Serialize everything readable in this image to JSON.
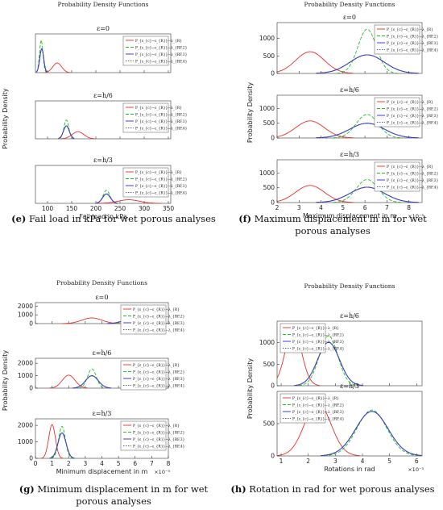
{
  "colors": {
    "red": "#e8302a",
    "green": "#1fc21f",
    "blue": "#2a2ae0",
    "gray": "#5a6275",
    "axis": "#333333"
  },
  "legend_labels": [
    "P_{ε_{c}−ε_{R}}−λ_{R}",
    "P_{ε_{c}−ε_{R}}−λ_{RF,2}",
    "P_{ε_{c}−ε_{R}}−λ_{RF,3}",
    "P_{ε_{c}−ε_{R}}−λ_{RF,4}"
  ],
  "chart_data": [
    {
      "id": "e",
      "type": "line",
      "title": "Probability Density Functions",
      "xlabel": "Fail load in kPa",
      "ylabel": "Probability Density",
      "caption_letter": "(e)",
      "caption_text": "Fail load in kPa for wet porous analyses",
      "x_ticks": [
        "100",
        "150",
        "200",
        "250",
        "300",
        "350"
      ],
      "xlim": [
        75,
        355
      ],
      "x_exponent": "",
      "panels": [
        {
          "label": "ε=0",
          "ylim": [
            0,
            0.16
          ],
          "y_ticks": [],
          "series": [
            {
              "name": "red",
              "mu": 120,
              "sigma": 9,
              "peak": 0.04
            },
            {
              "name": "green",
              "mu": 87,
              "sigma": 3.5,
              "peak": 0.135
            },
            {
              "name": "blue",
              "mu": 88,
              "sigma": 4,
              "peak": 0.1
            },
            {
              "name": "gray",
              "mu": 88,
              "sigma": 4,
              "peak": 0.1
            }
          ]
        },
        {
          "label": "ε=h/6",
          "ylim": [
            0,
            0.16
          ],
          "y_ticks": [],
          "series": [
            {
              "name": "red",
              "mu": 163,
              "sigma": 12,
              "peak": 0.03
            },
            {
              "name": "green",
              "mu": 139,
              "sigma": 5,
              "peak": 0.08
            },
            {
              "name": "blue",
              "mu": 139,
              "sigma": 6,
              "peak": 0.055
            },
            {
              "name": "gray",
              "mu": 139,
              "sigma": 6,
              "peak": 0.055
            }
          ]
        },
        {
          "label": "ε=h/3",
          "ylim": [
            0,
            0.16
          ],
          "y_ticks": [],
          "series": [
            {
              "name": "red",
              "mu": 268,
              "sigma": 22,
              "peak": 0.015
            },
            {
              "name": "green",
              "mu": 222,
              "sigma": 7,
              "peak": 0.055
            },
            {
              "name": "blue",
              "mu": 222,
              "sigma": 8,
              "peak": 0.04
            },
            {
              "name": "gray",
              "mu": 222,
              "sigma": 8,
              "peak": 0.04
            }
          ]
        }
      ]
    },
    {
      "id": "f",
      "type": "line",
      "title": "Probability Density Functions",
      "xlabel": "Maximum displacement in m",
      "ylabel": "Probability Density",
      "caption_letter": "(f)",
      "caption_text": "Maximum displacement in m for wet porous analyses",
      "x_ticks": [
        "2",
        "3",
        "4",
        "5",
        "6",
        "7",
        "8"
      ],
      "xlim": [
        2,
        8.6
      ],
      "x_exponent": "×10⁻³",
      "panels": [
        {
          "label": "ε=0",
          "ylim": [
            0,
            1450
          ],
          "y_ticks": [
            "0",
            "500",
            "1000"
          ],
          "series": [
            {
              "name": "red",
              "mu": 3.5,
              "sigma": 0.65,
              "peak": 620
            },
            {
              "name": "green",
              "mu": 6.1,
              "sigma": 0.42,
              "peak": 1260
            },
            {
              "name": "blue",
              "mu": 6.1,
              "sigma": 0.78,
              "peak": 530
            },
            {
              "name": "gray",
              "mu": 6.1,
              "sigma": 0.78,
              "peak": 530
            }
          ]
        },
        {
          "label": "ε=h/6",
          "ylim": [
            0,
            1450
          ],
          "y_ticks": [
            "0",
            "500",
            "1000"
          ],
          "series": [
            {
              "name": "red",
              "mu": 3.5,
              "sigma": 0.65,
              "peak": 580
            },
            {
              "name": "green",
              "mu": 6.1,
              "sigma": 0.5,
              "peak": 800
            },
            {
              "name": "blue",
              "mu": 6.1,
              "sigma": 0.78,
              "peak": 500
            },
            {
              "name": "gray",
              "mu": 6.1,
              "sigma": 0.78,
              "peak": 500
            }
          ]
        },
        {
          "label": "ε=h/3",
          "ylim": [
            0,
            1450
          ],
          "y_ticks": [
            "0",
            "500",
            "1000"
          ],
          "series": [
            {
              "name": "red",
              "mu": 3.5,
              "sigma": 0.65,
              "peak": 580
            },
            {
              "name": "green",
              "mu": 6.1,
              "sigma": 0.5,
              "peak": 780
            },
            {
              "name": "blue",
              "mu": 6.1,
              "sigma": 0.78,
              "peak": 520
            },
            {
              "name": "gray",
              "mu": 6.1,
              "sigma": 0.78,
              "peak": 520
            }
          ]
        }
      ]
    },
    {
      "id": "g",
      "type": "line",
      "title": "Probability Density Functions",
      "xlabel": "Minimum displacement in m",
      "ylabel": "Probability Density",
      "caption_letter": "(g)",
      "caption_text": "Minimum displacement in m for wet porous analyses",
      "x_ticks": [
        "0",
        "1",
        "2",
        "3",
        "4",
        "5",
        "6",
        "7",
        "8"
      ],
      "xlim": [
        0,
        8
      ],
      "x_exponent": "×10⁻³",
      "panels": [
        {
          "label": "ε=0",
          "ylim": [
            0,
            2400
          ],
          "y_ticks": [
            "0",
            "1000",
            "2000"
          ],
          "series": [
            {
              "name": "red",
              "mu": 3.4,
              "sigma": 0.6,
              "peak": 650
            },
            {
              "name": "green",
              "mu": 5.8,
              "sigma": 0.32,
              "peak": 1250
            },
            {
              "name": "blue",
              "mu": 5.9,
              "sigma": 0.55,
              "peak": 620
            },
            {
              "name": "gray",
              "mu": 5.9,
              "sigma": 0.55,
              "peak": 620
            }
          ]
        },
        {
          "label": "ε=h/6",
          "ylim": [
            0,
            2400
          ],
          "y_ticks": [
            "0",
            "1000",
            "2000"
          ],
          "series": [
            {
              "name": "red",
              "mu": 2.0,
              "sigma": 0.38,
              "peak": 1050
            },
            {
              "name": "green",
              "mu": 3.4,
              "sigma": 0.26,
              "peak": 1550
            },
            {
              "name": "blue",
              "mu": 3.4,
              "sigma": 0.38,
              "peak": 1000
            },
            {
              "name": "gray",
              "mu": 3.4,
              "sigma": 0.38,
              "peak": 1000
            }
          ]
        },
        {
          "label": "ε=h/3",
          "ylim": [
            0,
            2400
          ],
          "y_ticks": [
            "0",
            "1000",
            "2000"
          ],
          "series": [
            {
              "name": "red",
              "mu": 1.0,
              "sigma": 0.2,
              "peak": 2050
            },
            {
              "name": "green",
              "mu": 1.6,
              "sigma": 0.2,
              "peak": 1950
            },
            {
              "name": "blue",
              "mu": 1.6,
              "sigma": 0.24,
              "peak": 1550
            },
            {
              "name": "gray",
              "mu": 1.6,
              "sigma": 0.24,
              "peak": 1550
            }
          ]
        }
      ]
    },
    {
      "id": "h",
      "type": "line",
      "title": "Probability Density Functions",
      "xlabel": "Rotations in rad",
      "ylabel": "Probability Density",
      "caption_letter": "(h)",
      "caption_text": "Rotation in rad for wet porous analyses",
      "x_ticks": [
        "1",
        "2",
        "3",
        "4",
        "5",
        "6"
      ],
      "xlim": [
        0.85,
        6.2
      ],
      "x_exponent": "×10⁻³",
      "panels": [
        {
          "label": "ε=h/6",
          "ylim": [
            0,
            1500
          ],
          "y_ticks": [
            "0",
            "500",
            "1000"
          ],
          "series": [
            {
              "name": "red",
              "mu": 1.45,
              "sigma": 0.3,
              "peak": 1320
            },
            {
              "name": "green",
              "mu": 2.75,
              "sigma": 0.34,
              "peak": 1160
            },
            {
              "name": "blue",
              "mu": 2.75,
              "sigma": 0.4,
              "peak": 1010
            },
            {
              "name": "gray",
              "mu": 2.75,
              "sigma": 0.4,
              "peak": 1010
            }
          ]
        },
        {
          "label": "ε=h/3",
          "ylim": [
            0,
            1000
          ],
          "y_ticks": [
            "0",
            "500"
          ],
          "series": [
            {
              "name": "red",
              "mu": 2.35,
              "sigma": 0.48,
              "peak": 830
            },
            {
              "name": "green",
              "mu": 4.35,
              "sigma": 0.55,
              "peak": 710
            },
            {
              "name": "blue",
              "mu": 4.35,
              "sigma": 0.6,
              "peak": 690
            },
            {
              "name": "gray",
              "mu": 4.35,
              "sigma": 0.6,
              "peak": 690
            }
          ]
        }
      ]
    }
  ]
}
